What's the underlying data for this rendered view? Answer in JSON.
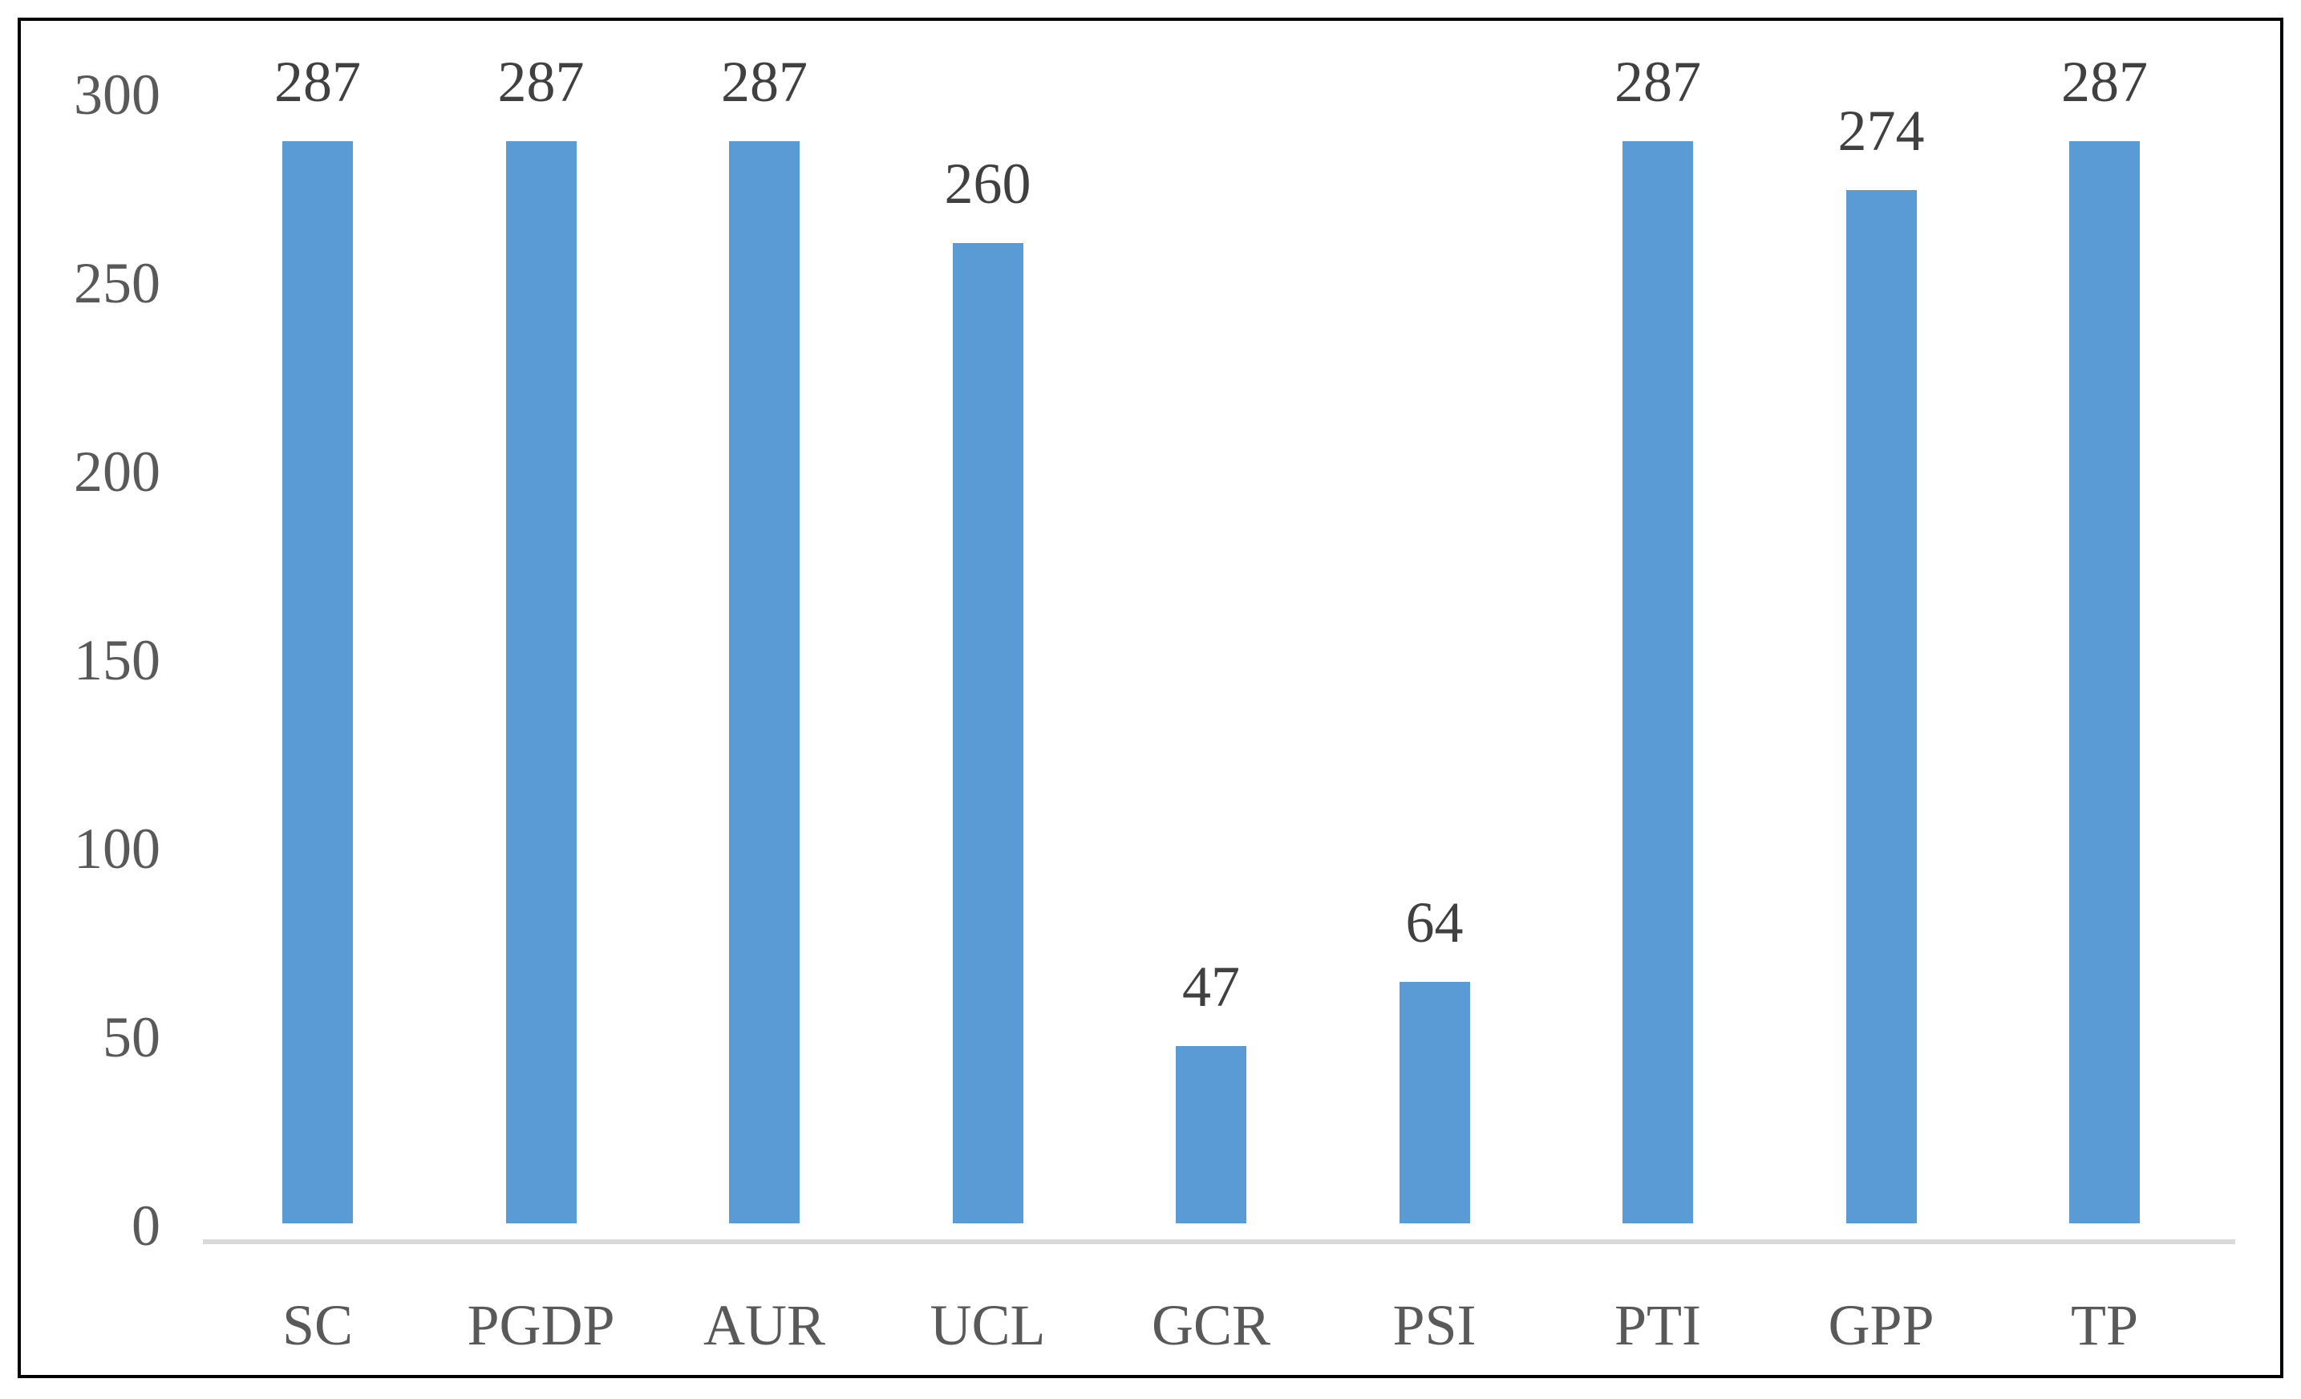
{
  "chart_data": {
    "type": "bar",
    "categories": [
      "SC",
      "PGDP",
      "AUR",
      "UCL",
      "GCR",
      "PSI",
      "PTI",
      "GPP",
      "TP"
    ],
    "values": [
      287,
      287,
      287,
      260,
      47,
      64,
      287,
      274,
      287
    ],
    "data_labels": [
      "287",
      "287",
      "287",
      "260",
      "47",
      "64",
      "287",
      "274",
      "287"
    ],
    "title": "",
    "xlabel": "",
    "ylabel": "",
    "ylim": [
      0,
      300
    ],
    "yticks": [
      0,
      50,
      100,
      150,
      200,
      250,
      300
    ],
    "grid": false,
    "legend": "none",
    "colors": {
      "bar": "#5B9BD5",
      "axis_line": "#D9D9D9",
      "tick_label": "#595959",
      "data_label": "#404040",
      "frame_border": "#000000",
      "background": "#FFFFFF"
    }
  }
}
